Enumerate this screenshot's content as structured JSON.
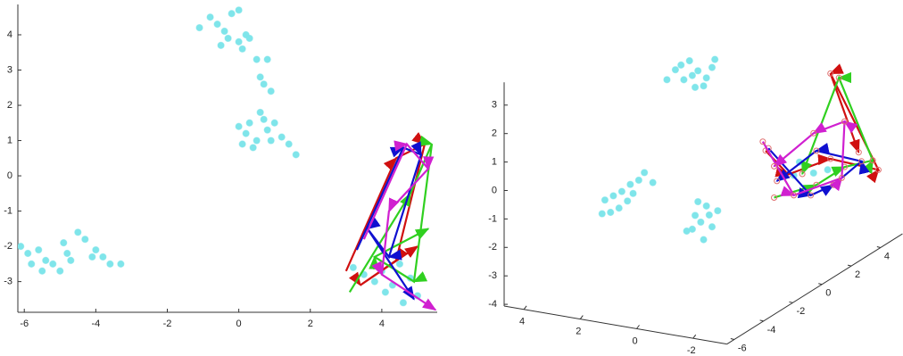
{
  "chart_data": [
    {
      "type": "scatter-trajectory",
      "xlim": [
        -6.18,
        5.55
      ],
      "ylim": [
        -3.87,
        4.86
      ],
      "xticks": [
        -6,
        -4,
        -2,
        0,
        2,
        4
      ],
      "yticks": [
        -3,
        -2,
        -1,
        0,
        1,
        2,
        3,
        4
      ],
      "points": {
        "color": "#7fe5ea",
        "x": [
          -1.1,
          -0.8,
          -0.6,
          -0.4,
          -0.2,
          0,
          -0.3,
          0,
          0.2,
          -0.5,
          0.1,
          0.3,
          0.5,
          0.8,
          0.6,
          0.9,
          0.7,
          0,
          0.3,
          0.6,
          0.8,
          0.5,
          0.2,
          0.9,
          1.2,
          1.4,
          1.6,
          0.4,
          0.1,
          0.7,
          1.0,
          -6.1,
          -5.9,
          -5.8,
          -5.6,
          -5.5,
          -5.4,
          -5.2,
          -5.0,
          -4.8,
          -4.7,
          -4.5,
          -4.3,
          -4.1,
          -4.0,
          -3.8,
          -3.6,
          -3.3,
          -4.9,
          3.2,
          3.5,
          3.8,
          4.0,
          4.3,
          4.5,
          4.1,
          4.8,
          5.0,
          4.6
        ],
        "y": [
          4.2,
          4.5,
          4.3,
          4.1,
          4.6,
          4.7,
          3.9,
          3.8,
          4.0,
          3.7,
          3.6,
          3.9,
          3.3,
          3.3,
          2.8,
          2.4,
          2.6,
          1.4,
          1.5,
          1.8,
          1.3,
          1.0,
          1.2,
          1.0,
          1.1,
          0.9,
          0.6,
          0.8,
          0.9,
          1.6,
          1.5,
          -2.0,
          -2.2,
          -2.5,
          -2.1,
          -2.7,
          -2.4,
          -2.5,
          -2.7,
          -2.2,
          -2.4,
          -1.6,
          -1.8,
          -2.3,
          -2.1,
          -2.3,
          -2.5,
          -2.5,
          -1.9,
          -2.6,
          -2.8,
          -3.0,
          -2.7,
          -3.1,
          -2.5,
          -3.3,
          -2.9,
          -3.4,
          -3.6
        ]
      },
      "series": [
        {
          "color": "#d01010",
          "x": [
            3.0,
            4.4,
            5.2,
            4.4,
            3.4,
            5.0
          ],
          "y": [
            -2.7,
            0.5,
            0.9,
            -2.4,
            -3.1,
            -2.0
          ]
        },
        {
          "color": "#30d020",
          "x": [
            3.1,
            4.8,
            5.4,
            4.9,
            3.8,
            5.3
          ],
          "y": [
            -3.3,
            -0.5,
            0.9,
            -3.0,
            -2.3,
            -1.5
          ]
        },
        {
          "color": "#1010d0",
          "x": [
            3.3,
            4.6,
            5.1,
            4.2,
            3.6,
            4.9
          ],
          "y": [
            -2.1,
            0.8,
            0.6,
            -2.3,
            -1.5,
            -3.5
          ]
        },
        {
          "color": "#d020d0",
          "x": [
            3.5,
            4.7,
            5.3,
            4.2,
            4.0,
            5.5
          ],
          "y": [
            -1.8,
            0.9,
            0.2,
            -1.0,
            -2.8,
            -3.8
          ]
        }
      ]
    },
    {
      "type": "scatter3d",
      "xlim": [
        -3.2,
        4.7
      ],
      "ylim": [
        -6.5,
        5.5
      ],
      "zlim": [
        -4.06,
        3.8
      ],
      "xticks": [
        4,
        2,
        0,
        -2
      ],
      "yticks": [
        -6,
        -4,
        -2,
        0,
        2,
        4
      ],
      "zticks": [
        -4,
        -3,
        -2,
        -1,
        0,
        1,
        2,
        3
      ],
      "points": {
        "color": "#7fe5ea",
        "x": [
          1.4,
          1.2,
          1.7,
          2.0,
          1.0,
          0.7,
          1.5,
          2.3,
          0.9,
          1.8,
          1.3,
          0.6,
          4.5,
          4.2,
          3.9,
          3.6,
          3.3,
          4.0,
          3.7,
          4.3,
          3.1,
          2.8,
          3.5,
          4.6,
          1.1,
          0.8,
          1.4,
          0.9,
          1.3,
          0.5,
          1.6,
          1.0,
          0.7,
          1.2,
          -2.4,
          -2.9,
          -3.4,
          -2.2
        ],
        "y": [
          0,
          0,
          0,
          0,
          0,
          0,
          0,
          0,
          0,
          0,
          0,
          0,
          0,
          0,
          0,
          0,
          0,
          0,
          0,
          0,
          0,
          0,
          0,
          0,
          0,
          0,
          0,
          0,
          0,
          0,
          0,
          0,
          0,
          0,
          0,
          0,
          0,
          0
        ],
        "z": [
          2.5,
          2.7,
          2.3,
          2.6,
          2.2,
          2.9,
          3.0,
          2.2,
          2.5,
          2.8,
          2.1,
          3.2,
          -2.4,
          -2.2,
          -2.0,
          -1.7,
          -1.5,
          -2.6,
          -2.3,
          -2.8,
          -1.2,
          -1.5,
          -2.0,
          -2.9,
          -2.6,
          -2.3,
          -2.9,
          -2.0,
          -2.4,
          -2.1,
          -3.0,
          -3.2,
          -2.7,
          -1.9,
          0.1,
          -0.2,
          0.0,
          -0.4
        ]
      },
      "series": [
        {
          "color": "#d01010",
          "x": [
            -1.2,
            -2.0,
            -3.5,
            -5.2,
            -3.5,
            -4.5
          ],
          "y": [
            0,
            0,
            0,
            0,
            0,
            0
          ],
          "z": [
            0.3,
            -0.4,
            0.4,
            0.3,
            3.4,
            0.8
          ]
        },
        {
          "color": "#30d020",
          "x": [
            -1.5,
            -3.0,
            -4.0,
            -5.0,
            -3.8,
            -2.5
          ],
          "y": [
            0,
            0,
            0,
            0,
            0,
            0
          ],
          "z": [
            -1.3,
            -0.6,
            0.2,
            0.6,
            3.3,
            -0.3
          ]
        },
        {
          "color": "#1010d0",
          "x": [
            -1.3,
            -2.8,
            -3.6,
            -4.6,
            -3.0,
            -1.6
          ],
          "y": [
            0,
            0,
            0,
            0,
            0,
            0
          ],
          "z": [
            0.4,
            -1.0,
            -0.5,
            0.5,
            0.6,
            -0.7
          ]
        },
        {
          "color": "#d020d0",
          "x": [
            -1.1,
            -2.2,
            -3.9,
            -4.0,
            -2.9,
            -1.5
          ],
          "y": [
            0,
            0,
            0,
            0,
            0,
            0
          ],
          "z": [
            0.6,
            -1.1,
            -0.2,
            1.8,
            1.2,
            -0.2
          ]
        }
      ]
    }
  ]
}
